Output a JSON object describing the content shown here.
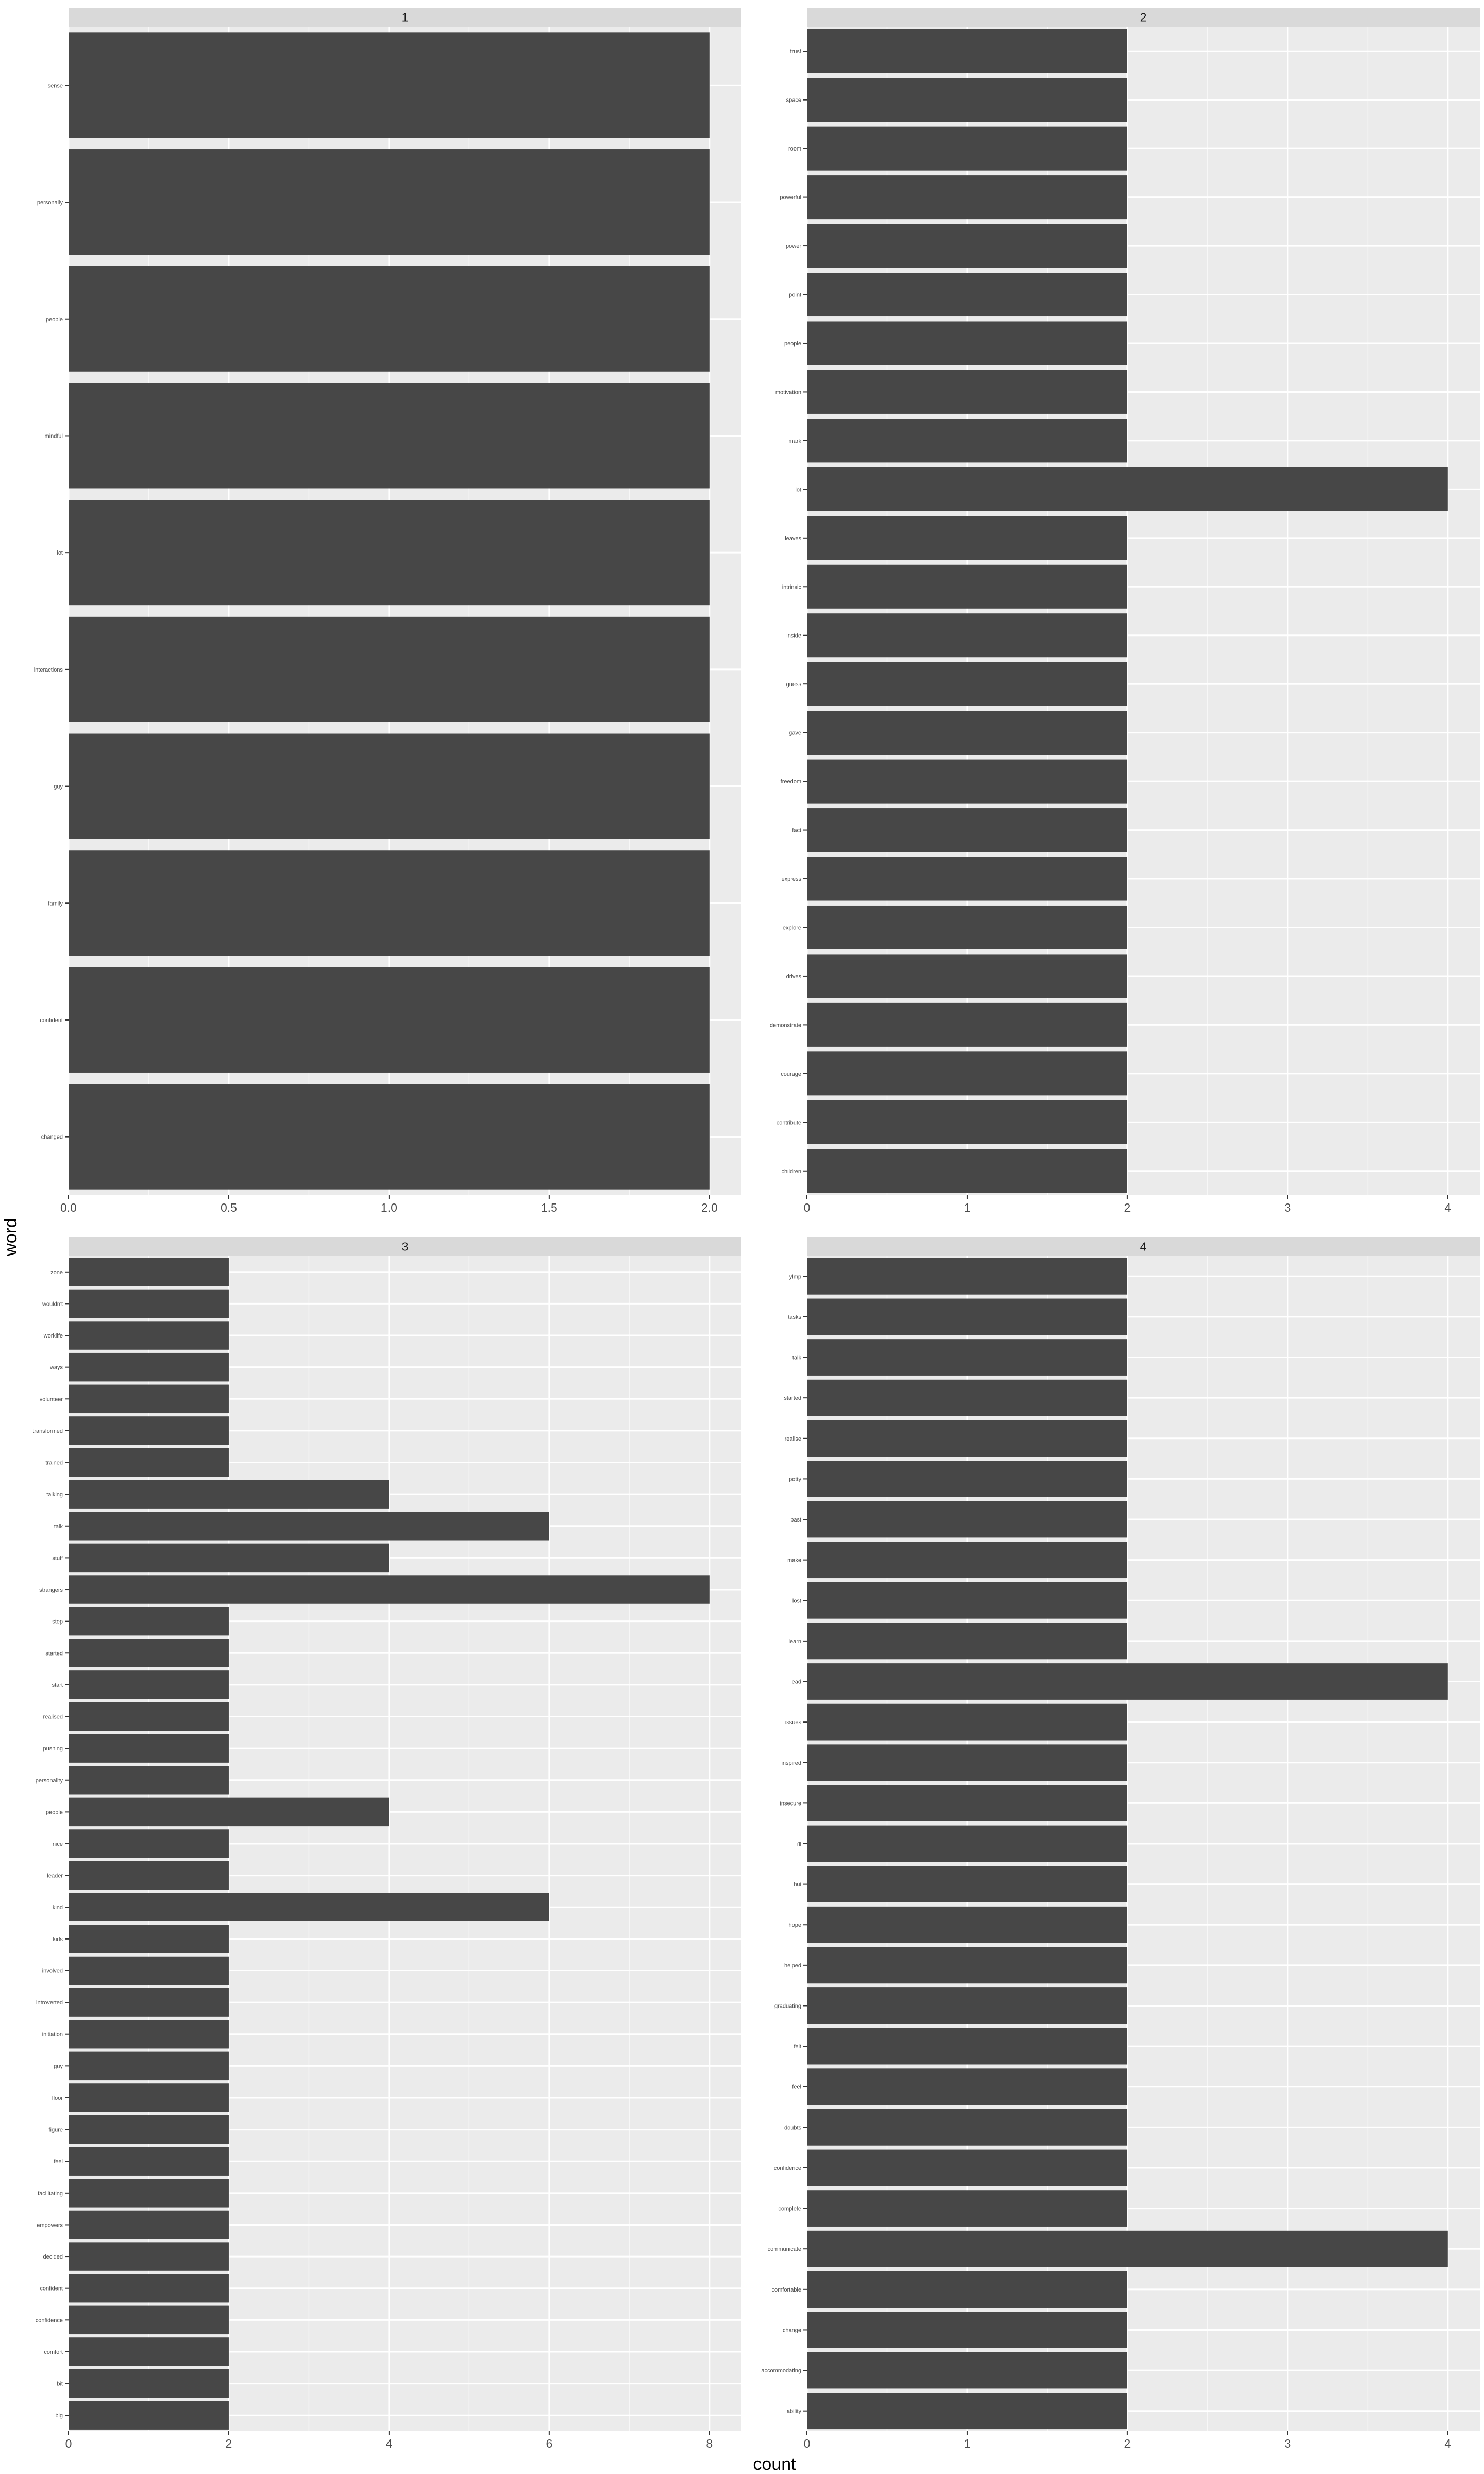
{
  "chart_data": {
    "type": "bar",
    "orientation": "horizontal",
    "facet_layout": "2x2 grid",
    "xlabel": "count",
    "ylabel": "word",
    "grid": true,
    "colors": {
      "bar": "#474747",
      "panel": "#ebebeb",
      "strip": "#d9d9d9",
      "grid": "#ffffff"
    },
    "panels": [
      {
        "label": "1",
        "xlim": [
          0,
          2.1
        ],
        "xticks": [
          0,
          0.5,
          1,
          1.5,
          2
        ],
        "xtick_labels": [
          "0.0",
          "0.5",
          "1.0",
          "1.5",
          "2.0"
        ],
        "categories": [
          "sense",
          "personally",
          "people",
          "mindful",
          "lot",
          "interactions",
          "guy",
          "family",
          "confident",
          "changed"
        ],
        "values": [
          2,
          2,
          2,
          2,
          2,
          2,
          2,
          2,
          2,
          2
        ]
      },
      {
        "label": "2",
        "xlim": [
          0,
          4.2
        ],
        "xticks": [
          0,
          1,
          2,
          3,
          4
        ],
        "xtick_labels": [
          "0",
          "1",
          "2",
          "3",
          "4"
        ],
        "categories": [
          "trust",
          "space",
          "room",
          "powerful",
          "power",
          "point",
          "people",
          "motivation",
          "mark",
          "lot",
          "leaves",
          "intrinsic",
          "inside",
          "guess",
          "gave",
          "freedom",
          "fact",
          "express",
          "explore",
          "drives",
          "demonstrate",
          "courage",
          "contribute",
          "children"
        ],
        "values": [
          2,
          2,
          2,
          2,
          2,
          2,
          2,
          2,
          2,
          4,
          2,
          2,
          2,
          2,
          2,
          2,
          2,
          2,
          2,
          2,
          2,
          2,
          2,
          2
        ]
      },
      {
        "label": "3",
        "xlim": [
          0,
          8.4
        ],
        "xticks": [
          0,
          2,
          4,
          6,
          8
        ],
        "xtick_labels": [
          "0",
          "2",
          "4",
          "6",
          "8"
        ],
        "categories": [
          "zone",
          "wouldn't",
          "worklife",
          "ways",
          "volunteer",
          "transformed",
          "trained",
          "talking",
          "talk",
          "stuff",
          "strangers",
          "step",
          "started",
          "start",
          "realised",
          "pushing",
          "personality",
          "people",
          "nice",
          "leader",
          "kind",
          "kids",
          "involved",
          "introverted",
          "initiation",
          "guy",
          "floor",
          "figure",
          "feel",
          "facilitating",
          "empowers",
          "decided",
          "confident",
          "confidence",
          "comfort",
          "bit",
          "big"
        ],
        "values": [
          2,
          2,
          2,
          2,
          2,
          2,
          2,
          4,
          6,
          4,
          8,
          2,
          2,
          2,
          2,
          2,
          2,
          4,
          2,
          2,
          6,
          2,
          2,
          2,
          2,
          2,
          2,
          2,
          2,
          2,
          2,
          2,
          2,
          2,
          2,
          2,
          2
        ]
      },
      {
        "label": "4",
        "xlim": [
          0,
          4.2
        ],
        "xticks": [
          0,
          1,
          2,
          3,
          4
        ],
        "xtick_labels": [
          "0",
          "1",
          "2",
          "3",
          "4"
        ],
        "categories": [
          "ylmp",
          "tasks",
          "talk",
          "started",
          "realise",
          "potty",
          "past",
          "make",
          "lost",
          "learn",
          "lead",
          "issues",
          "inspired",
          "insecure",
          "i'll",
          "hui",
          "hope",
          "helped",
          "graduating",
          "felt",
          "feel",
          "doubts",
          "confidence",
          "complete",
          "communicate",
          "comfortable",
          "change",
          "accommodating",
          "ability"
        ],
        "values": [
          2,
          2,
          2,
          2,
          2,
          2,
          2,
          2,
          2,
          2,
          4,
          2,
          2,
          2,
          2,
          2,
          2,
          2,
          2,
          2,
          2,
          2,
          2,
          2,
          4,
          2,
          2,
          2,
          2
        ]
      }
    ]
  }
}
